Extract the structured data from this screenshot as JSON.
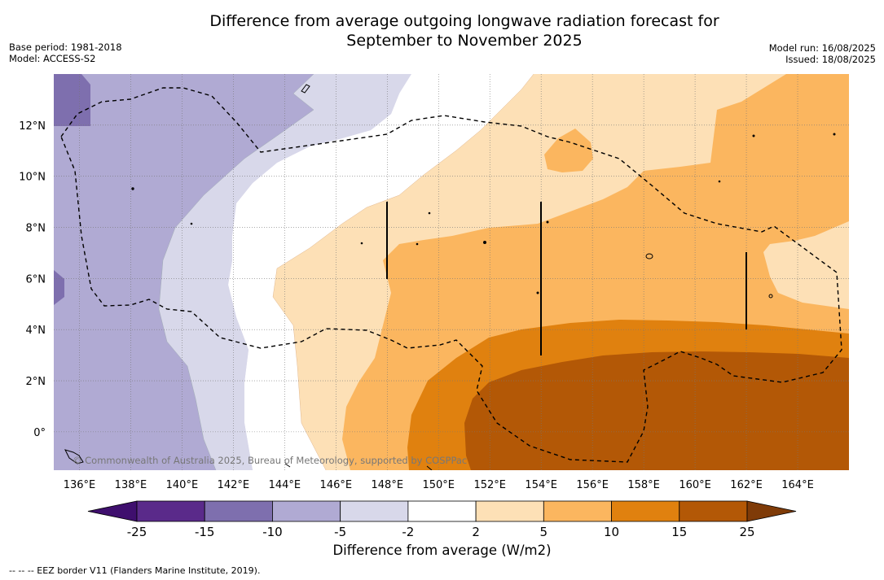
{
  "title_line1": "Difference from average outgoing longwave radiation forecast for",
  "title_line2": "September to November 2025",
  "meta_left": [
    "Base period: 1981-2018",
    "Model: ACCESS-S2"
  ],
  "meta_right": [
    "Model run: 16/08/2025",
    "Issued: 18/08/2025"
  ],
  "map": {
    "lon_range": [
      135,
      166
    ],
    "lat_range": [
      -1.5,
      14
    ],
    "lon_ticks": [
      "136°E",
      "138°E",
      "140°E",
      "142°E",
      "144°E",
      "146°E",
      "148°E",
      "150°E",
      "152°E",
      "154°E",
      "156°E",
      "158°E",
      "160°E",
      "162°E",
      "164°E"
    ],
    "lat_ticks": [
      "12°N",
      "10°N",
      "8°N",
      "6°N",
      "4°N",
      "2°N",
      "0°"
    ],
    "copyright": "© Commonwealth of Australia 2025, Bureau of Meteorology, supported by COSPPac",
    "grid": true
  },
  "colorbar": {
    "labels": [
      "-25",
      "-15",
      "-10",
      "-5",
      "-2",
      "2",
      "5",
      "10",
      "15",
      "25"
    ],
    "colors": [
      "#3f0f6e",
      "#5a2a8a",
      "#7e6fae",
      "#b0aad3",
      "#d8d8ea",
      "#ffffff",
      "#fde0b6",
      "#fbb65f",
      "#e0810f",
      "#b35806",
      "#7f3b08"
    ],
    "title": "Difference from average (W/m2)"
  },
  "footnote": "--  --  -- EEZ border V11 (Flanders Marine Institute, 2019)."
}
